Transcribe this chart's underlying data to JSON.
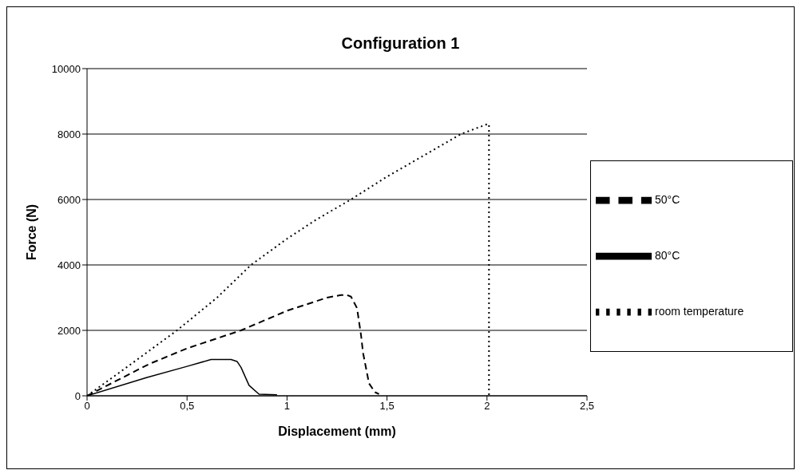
{
  "chart_data": {
    "type": "line",
    "title": "Configuration 1",
    "xlabel": "Displacement (mm)",
    "ylabel": "Force (N)",
    "xlim": [
      0,
      2.5
    ],
    "xticks": [
      {
        "value": 0,
        "label": "0"
      },
      {
        "value": 0.5,
        "label": "0,5"
      },
      {
        "value": 1,
        "label": "1"
      },
      {
        "value": 1.5,
        "label": "1,5"
      },
      {
        "value": 2,
        "label": "2"
      },
      {
        "value": 2.5,
        "label": "2,5"
      }
    ],
    "ylim": [
      0,
      10000
    ],
    "yticks": [
      0,
      2000,
      4000,
      6000,
      8000,
      10000
    ],
    "grid": "y",
    "legend": "right",
    "marker": "none",
    "series": [
      {
        "name": "room temperature",
        "color": "#000000",
        "line_style": "dotted",
        "x": [
          0,
          0.2,
          0.45,
          0.65,
          0.82,
          1.0,
          1.15,
          1.32,
          1.5,
          1.7,
          1.87,
          2.0,
          2.01,
          2.01
        ],
        "values": [
          0,
          880,
          2000,
          3000,
          4000,
          4800,
          5400,
          6000,
          6700,
          7400,
          8000,
          8300,
          8300,
          0
        ]
      },
      {
        "name": "50°C",
        "color": "#000000",
        "line_style": "dashed",
        "x": [
          0,
          0.31,
          0.5,
          0.77,
          1.0,
          1.1,
          1.2,
          1.27,
          1.3,
          1.32,
          1.35,
          1.37,
          1.38,
          1.41,
          1.44,
          1.46
        ],
        "values": [
          0,
          970,
          1450,
          2000,
          2600,
          2800,
          3000,
          3080,
          3080,
          3030,
          2680,
          1860,
          1320,
          380,
          110,
          50
        ]
      },
      {
        "name": "80°C",
        "color": "#000000",
        "line_style": "solid",
        "x": [
          0,
          0.3,
          0.5,
          0.62,
          0.72,
          0.75,
          0.77,
          0.81,
          0.86,
          0.95
        ],
        "values": [
          0,
          560,
          900,
          1110,
          1110,
          1050,
          870,
          320,
          50,
          30
        ]
      }
    ]
  }
}
